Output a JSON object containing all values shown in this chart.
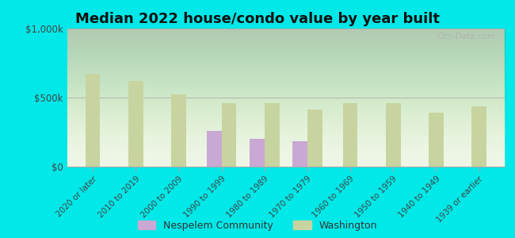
{
  "title": "Median 2022 house/condo value by year built",
  "categories": [
    "2020 or later",
    "2010 to 2019",
    "2000 to 2009",
    "1990 to 1999",
    "1980 to 1989",
    "1970 to 1979",
    "1960 to 1969",
    "1950 to 1959",
    "1940 to 1949",
    "1939 or earlier"
  ],
  "nespelem": [
    null,
    null,
    null,
    260000,
    200000,
    185000,
    null,
    null,
    null,
    null
  ],
  "washington": [
    675000,
    620000,
    525000,
    460000,
    460000,
    415000,
    460000,
    460000,
    390000,
    435000
  ],
  "nespelem_color": "#c9a8d4",
  "washington_color": "#c8d4a0",
  "background_color": "#00e8e8",
  "title_fontsize": 13,
  "yticks": [
    0,
    500000,
    1000000
  ],
  "ylim": [
    0,
    1000000
  ],
  "ylabel_labels": [
    "$0",
    "$500k",
    "$1,000k"
  ],
  "bar_width": 0.35,
  "legend_labels": [
    "Nespelem Community",
    "Washington"
  ],
  "watermark": "City-Data.com"
}
